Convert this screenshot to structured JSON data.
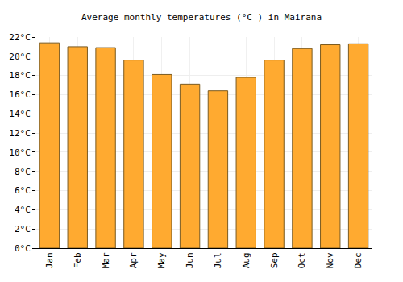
{
  "chart_data": {
    "type": "bar",
    "title": "Average monthly temperatures (°C ) in Mairana",
    "categories": [
      "Jan",
      "Feb",
      "Mar",
      "Apr",
      "May",
      "Jun",
      "Jul",
      "Aug",
      "Sep",
      "Oct",
      "Nov",
      "Dec"
    ],
    "values": [
      21.4,
      21.0,
      20.9,
      19.6,
      18.1,
      17.1,
      16.4,
      17.8,
      19.6,
      20.8,
      21.2,
      21.3
    ],
    "color": "#ffaa30",
    "ylim": [
      0,
      22
    ],
    "yticks": [
      {
        "value": 0,
        "label": "0°C"
      },
      {
        "value": 2,
        "label": "2°C"
      },
      {
        "value": 4,
        "label": "4°C"
      },
      {
        "value": 6,
        "label": "6°C"
      },
      {
        "value": 8,
        "label": "8°C"
      },
      {
        "value": 10,
        "label": "10°C"
      },
      {
        "value": 12,
        "label": "12°C"
      },
      {
        "value": 14,
        "label": "14°C"
      },
      {
        "value": 16,
        "label": "16°C"
      },
      {
        "value": 18,
        "label": "18°C"
      },
      {
        "value": 20,
        "label": "20°C"
      },
      {
        "value": 22,
        "label": "22°C"
      }
    ],
    "grid": true
  }
}
